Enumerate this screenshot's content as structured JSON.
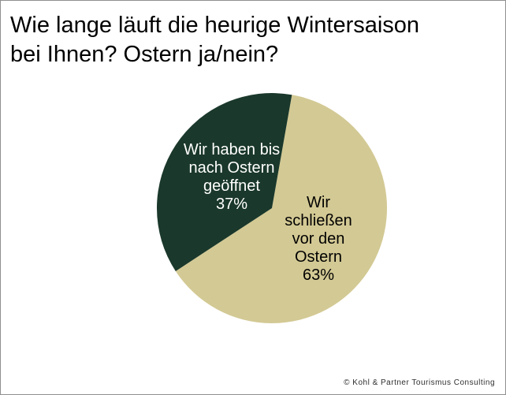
{
  "page": {
    "title_lines": [
      "Wie lange läuft die heurige Wintersaison",
      "bei Ihnen? Ostern ja/nein?"
    ],
    "footer": "© Kohl & Partner Tourismus Consulting"
  },
  "chart_data": {
    "type": "pie",
    "title": "Wie lange läuft die heurige Wintersaison bei Ihnen? Ostern ja/nein?",
    "unit": "%",
    "legend": "none",
    "start_angle_deg": 10,
    "direction": "clockwise",
    "slices": [
      {
        "label": "Wir schließen vor den Ostern",
        "value": 63,
        "value_label": "63%",
        "color": "#d3c994",
        "text_color": "#000000",
        "label_lines": [
          "Wir",
          "schließen",
          "vor den",
          "Ostern",
          "63%"
        ]
      },
      {
        "label": "Wir haben bis nach Ostern geöffnet",
        "value": 37,
        "value_label": "37%",
        "color": "#1a382b",
        "text_color": "#ffffff",
        "label_lines": [
          "Wir haben bis",
          "nach Ostern",
          "geöffnet",
          "37%"
        ]
      }
    ]
  }
}
